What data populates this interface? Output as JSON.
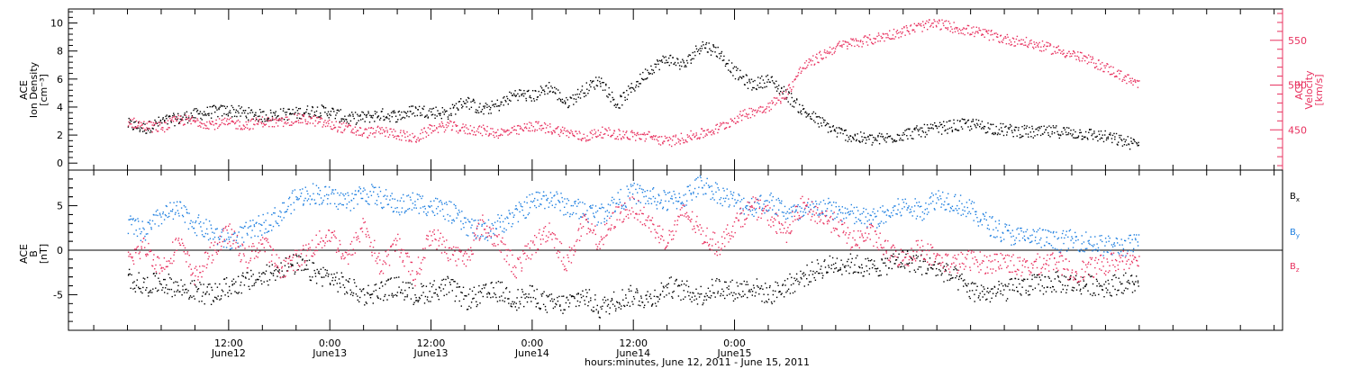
{
  "chart_data": [
    {
      "type": "scatter",
      "panel": "top",
      "left_axis": {
        "label_lines": [
          "ACE",
          "Ion Density",
          "[cm⁻³]"
        ],
        "ylim": [
          -0.5,
          11
        ],
        "ticks": [
          0,
          2,
          4,
          6,
          8,
          10
        ]
      },
      "right_axis": {
        "label_lines": [
          "ACE",
          "Velocity",
          "[km/s]"
        ],
        "ylim": [
          405,
          585
        ],
        "ticks": [
          450,
          500,
          550
        ],
        "color": "#e8315f"
      },
      "series": [
        {
          "axis": "left",
          "color": "#000000",
          "x": [
            0,
            2,
            4,
            6,
            8,
            10,
            12,
            14,
            16,
            18,
            20,
            22,
            24,
            26,
            28,
            30,
            32,
            34,
            36,
            38,
            40,
            42,
            44,
            46,
            48,
            50,
            52,
            54,
            56,
            58,
            60,
            62,
            64,
            66,
            68,
            70,
            72,
            74,
            76,
            78,
            80,
            82,
            84,
            86,
            88,
            90,
            92,
            94,
            96,
            98,
            100,
            102,
            104,
            106,
            108,
            110,
            112,
            114,
            116,
            118,
            120
          ],
          "values": [
            2.8,
            2.5,
            3.0,
            3.2,
            3.5,
            3.7,
            3.8,
            3.6,
            3.4,
            3.5,
            3.6,
            3.8,
            3.7,
            3.2,
            3.3,
            3.5,
            3.4,
            3.8,
            3.7,
            3.6,
            4.5,
            3.8,
            4.2,
            5.0,
            4.8,
            5.5,
            4.3,
            5.2,
            6.0,
            4.2,
            5.5,
            6.8,
            7.5,
            7.0,
            8.5,
            8.0,
            6.5,
            5.6,
            6.0,
            5.0,
            3.8,
            3.0,
            2.3,
            1.9,
            1.7,
            1.8,
            2.1,
            2.3,
            2.5,
            2.7,
            2.8,
            2.6,
            2.4,
            2.3,
            2.2,
            2.3,
            2.2,
            2.1,
            1.9,
            1.6,
            1.3
          ]
        },
        {
          "axis": "right",
          "color": "#e8315f",
          "x": [
            0,
            2,
            4,
            6,
            8,
            10,
            12,
            14,
            16,
            18,
            20,
            22,
            24,
            26,
            28,
            30,
            32,
            34,
            36,
            38,
            40,
            42,
            44,
            46,
            48,
            50,
            52,
            54,
            56,
            58,
            60,
            62,
            64,
            66,
            68,
            70,
            72,
            74,
            76,
            78,
            80,
            82,
            84,
            86,
            88,
            90,
            92,
            94,
            96,
            98,
            100,
            102,
            104,
            106,
            108,
            110,
            112,
            114,
            116,
            118,
            120
          ],
          "values": [
            460,
            455,
            453,
            462,
            460,
            457,
            458,
            456,
            460,
            458,
            463,
            461,
            456,
            452,
            447,
            449,
            446,
            440,
            452,
            455,
            451,
            450,
            447,
            449,
            455,
            452,
            448,
            442,
            448,
            446,
            444,
            443,
            437,
            442,
            446,
            452,
            463,
            471,
            477,
            490,
            520,
            532,
            543,
            548,
            551,
            556,
            561,
            566,
            569,
            565,
            561,
            557,
            552,
            549,
            545,
            540,
            535,
            528,
            520,
            510,
            500
          ]
        }
      ]
    },
    {
      "type": "scatter",
      "panel": "bottom",
      "left_axis": {
        "label_lines": [
          "ACE",
          "B",
          "[nT]"
        ],
        "ylim": [
          -9,
          9
        ],
        "ticks": [
          -5,
          0,
          5
        ]
      },
      "reference_line": 0,
      "legend": [
        {
          "name": "B",
          "sub": "x",
          "color": "#000000"
        },
        {
          "name": "B",
          "sub": "y",
          "color": "#1e7fe0"
        },
        {
          "name": "B",
          "sub": "z",
          "color": "#e8315f"
        }
      ],
      "series": [
        {
          "name": "Bx",
          "color": "#000000",
          "x": [
            0,
            2,
            4,
            6,
            8,
            10,
            12,
            14,
            16,
            18,
            20,
            22,
            24,
            26,
            28,
            30,
            32,
            34,
            36,
            38,
            40,
            42,
            44,
            46,
            48,
            50,
            52,
            54,
            56,
            58,
            60,
            62,
            64,
            66,
            68,
            70,
            72,
            74,
            76,
            78,
            80,
            82,
            84,
            86,
            88,
            90,
            92,
            94,
            96,
            98,
            100,
            102,
            104,
            106,
            108,
            110,
            112,
            114,
            116,
            118,
            120
          ],
          "values": [
            -3.0,
            -4.0,
            -3.5,
            -4.2,
            -4.5,
            -5.0,
            -4.0,
            -3.5,
            -3.0,
            -2.0,
            -1.5,
            -2.5,
            -3.0,
            -4.0,
            -5.0,
            -4.5,
            -4.0,
            -5.0,
            -4.5,
            -4.0,
            -5.5,
            -5.0,
            -4.5,
            -5.5,
            -5.0,
            -6.0,
            -6.0,
            -5.0,
            -6.5,
            -5.5,
            -5.0,
            -5.5,
            -4.0,
            -4.5,
            -5.0,
            -4.0,
            -4.5,
            -4.0,
            -5.0,
            -4.0,
            -3.0,
            -2.0,
            -1.5,
            -1.5,
            -2.0,
            -1.5,
            -1.0,
            -1.5,
            -2.0,
            -3.0,
            -4.5,
            -4.8,
            -4.5,
            -4.0,
            -3.8,
            -3.5,
            -3.7,
            -3.8,
            -4.0,
            -3.6,
            -3.8
          ]
        },
        {
          "name": "By",
          "color": "#1e7fe0",
          "x": [
            0,
            2,
            4,
            6,
            8,
            10,
            12,
            14,
            16,
            18,
            20,
            22,
            24,
            26,
            28,
            30,
            32,
            34,
            36,
            38,
            40,
            42,
            44,
            46,
            48,
            50,
            52,
            54,
            56,
            58,
            60,
            62,
            64,
            66,
            68,
            70,
            72,
            74,
            76,
            78,
            80,
            82,
            84,
            86,
            88,
            90,
            92,
            94,
            96,
            98,
            100,
            102,
            104,
            106,
            108,
            110,
            112,
            114,
            116,
            118,
            120
          ],
          "values": [
            3.0,
            2.0,
            4.0,
            4.5,
            3.0,
            2.0,
            1.0,
            2.0,
            3.0,
            4.0,
            6.0,
            6.5,
            6.0,
            5.5,
            6.5,
            6.0,
            5.0,
            5.5,
            5.0,
            4.5,
            3.0,
            2.0,
            3.0,
            4.0,
            5.5,
            6.0,
            5.0,
            4.5,
            4.0,
            5.5,
            6.5,
            6.0,
            5.5,
            6.0,
            7.5,
            6.5,
            5.5,
            5.0,
            5.5,
            4.5,
            4.0,
            5.0,
            4.5,
            4.0,
            3.5,
            4.0,
            5.0,
            4.5,
            6.0,
            5.5,
            4.5,
            3.0,
            2.0,
            1.5,
            1.5,
            1.0,
            1.2,
            1.0,
            0.5,
            0.5,
            0.8
          ]
        },
        {
          "name": "Bz",
          "color": "#e8315f",
          "x": [
            0,
            2,
            4,
            6,
            8,
            10,
            12,
            14,
            16,
            18,
            20,
            22,
            24,
            26,
            28,
            30,
            32,
            34,
            36,
            38,
            40,
            42,
            44,
            46,
            48,
            50,
            52,
            54,
            56,
            58,
            60,
            62,
            64,
            66,
            68,
            70,
            72,
            74,
            76,
            78,
            80,
            82,
            84,
            86,
            88,
            90,
            92,
            94,
            96,
            98,
            100,
            102,
            104,
            106,
            108,
            110,
            112,
            114,
            116,
            118,
            120
          ],
          "values": [
            -1.0,
            0.5,
            -2.0,
            1.0,
            -3.0,
            0.0,
            2.0,
            -1.0,
            1.0,
            -2.0,
            -1.0,
            0.5,
            2.0,
            -1.0,
            3.0,
            -2.0,
            1.0,
            -3.0,
            2.0,
            0.0,
            -1.0,
            3.0,
            1.0,
            -2.0,
            0.5,
            2.5,
            -1.5,
            3.0,
            1.0,
            4.0,
            5.0,
            3.0,
            1.0,
            4.5,
            2.0,
            0.5,
            3.0,
            5.0,
            4.0,
            2.0,
            5.0,
            4.0,
            3.0,
            1.0,
            2.0,
            0.0,
            -1.0,
            0.5,
            -1.0,
            -1.5,
            -1.0,
            -1.5,
            -1.0,
            -2.0,
            -1.5,
            -1.0,
            -2.5,
            -2.0,
            -1.5,
            -1.0,
            -0.5
          ]
        }
      ]
    }
  ],
  "x_axis": {
    "range_hours": [
      -7,
      137
    ],
    "major_ticks": [
      {
        "hour": 12,
        "time": "12:00",
        "date": "June12"
      },
      {
        "hour": 24,
        "time": "0:00",
        "date": "June13"
      },
      {
        "hour": 36,
        "time": "12:00",
        "date": "June13"
      },
      {
        "hour": 48,
        "time": "0:00",
        "date": "June14"
      },
      {
        "hour": 60,
        "time": "12:00",
        "date": "June14"
      },
      {
        "hour": 72,
        "time": "0:00",
        "date": "June15"
      }
    ],
    "title": "hours:minutes, June 12, 2011 - June 15, 2011"
  },
  "colors": {
    "black": "#000000",
    "pink": "#e8315f",
    "blue": "#1e7fe0",
    "frame": "#000000"
  }
}
